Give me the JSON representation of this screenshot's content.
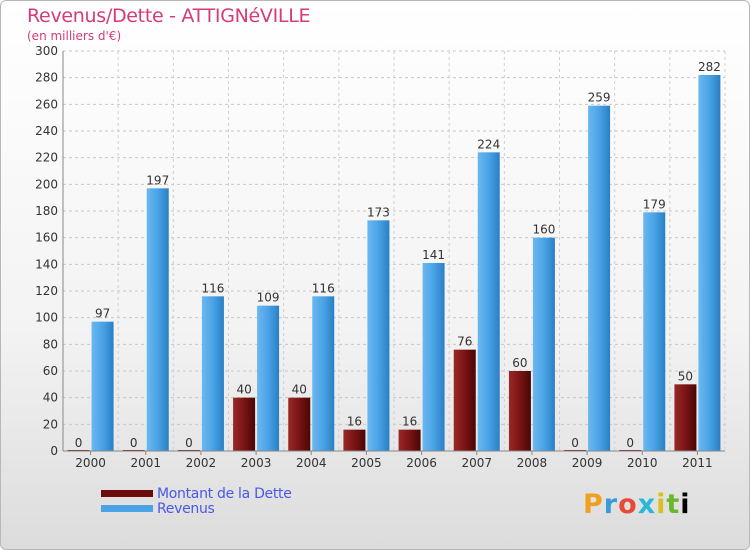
{
  "chart_data": {
    "type": "bar",
    "title": "Revenus/Dette - ATTIGNéVILLE",
    "subtitle": "(en milliers d'€)",
    "categories": [
      "2000",
      "2001",
      "2002",
      "2003",
      "2004",
      "2005",
      "2006",
      "2007",
      "2008",
      "2009",
      "2010",
      "2011"
    ],
    "series": [
      {
        "name": "Montant de la Dette",
        "color": "#7a1212",
        "values": [
          0,
          0,
          0,
          40,
          40,
          16,
          16,
          76,
          60,
          0,
          0,
          50
        ]
      },
      {
        "name": "Revenus",
        "color": "#4aa3e6",
        "values": [
          97,
          197,
          116,
          109,
          116,
          173,
          141,
          224,
          160,
          259,
          179,
          282
        ]
      }
    ],
    "ylim": [
      0,
      300
    ],
    "yticks": [
      0,
      20,
      40,
      60,
      80,
      100,
      120,
      140,
      160,
      180,
      200,
      220,
      240,
      260,
      280,
      300
    ],
    "grid": true,
    "legend": "bottom-left"
  },
  "brand": {
    "logo_text": "Proxiti",
    "colors": [
      "#f0a020",
      "#3a9ad8",
      "#e84a3a",
      "#2ab8d8",
      "#d8c020",
      "#6ab82a"
    ]
  }
}
